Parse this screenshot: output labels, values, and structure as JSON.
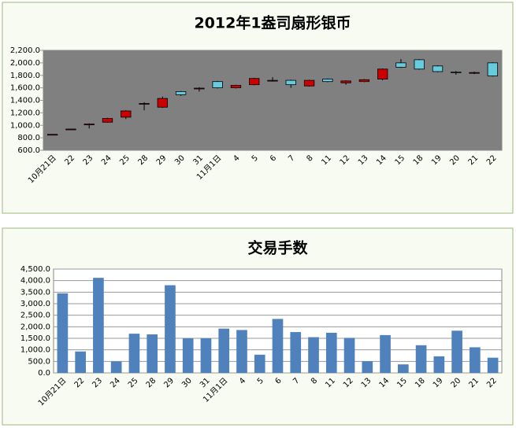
{
  "chart_data": [
    {
      "type": "candlestick",
      "title": "2012年1盎司扇形银币",
      "categories": [
        "10月21日",
        "22",
        "23",
        "24",
        "25",
        "28",
        "29",
        "30",
        "31",
        "11月1日",
        "4",
        "5",
        "6",
        "7",
        "8",
        "11",
        "12",
        "13",
        "14",
        "15",
        "18",
        "19",
        "20",
        "21",
        "22"
      ],
      "open": [
        850,
        935,
        1015,
        1050,
        1130,
        1340,
        1290,
        1540,
        1590,
        1700,
        1600,
        1650,
        1715,
        1720,
        1630,
        1740,
        1680,
        1700,
        1740,
        2000,
        2050,
        1950,
        1855,
        1840,
        2000
      ],
      "high": [
        860,
        945,
        1030,
        1120,
        1240,
        1370,
        1460,
        1550,
        1610,
        1710,
        1650,
        1760,
        1770,
        1730,
        1730,
        1750,
        1720,
        1740,
        1910,
        2060,
        2060,
        1960,
        1870,
        1860,
        2010
      ],
      "low": [
        845,
        925,
        950,
        1040,
        1100,
        1240,
        1280,
        1470,
        1540,
        1590,
        1590,
        1640,
        1700,
        1600,
        1620,
        1690,
        1650,
        1690,
        1720,
        1920,
        1890,
        1850,
        1810,
        1820,
        1780
      ],
      "close": [
        855,
        940,
        1020,
        1110,
        1230,
        1350,
        1430,
        1490,
        1595,
        1600,
        1640,
        1750,
        1720,
        1650,
        1720,
        1700,
        1710,
        1730,
        1900,
        1930,
        1900,
        1860,
        1850,
        1845,
        1790
      ],
      "up_color": "#cc0000",
      "down_color": "#66ccdd",
      "ylim": [
        600,
        2200
      ],
      "yticks": [
        {
          "value": 600,
          "label": "600.0"
        },
        {
          "value": 800,
          "label": "800.0"
        },
        {
          "value": 1000,
          "label": "1,000.0"
        },
        {
          "value": 1200,
          "label": "1,200.0"
        },
        {
          "value": 1400,
          "label": "1,400.0"
        },
        {
          "value": 1600,
          "label": "1,600.0"
        },
        {
          "value": 1800,
          "label": "1,800.0"
        },
        {
          "value": 2000,
          "label": "2,000.0"
        },
        {
          "value": 2200,
          "label": "2,200.0"
        }
      ],
      "grid": false
    },
    {
      "type": "bar",
      "title": "交易手数",
      "categories": [
        "10月21日",
        "22",
        "23",
        "24",
        "25",
        "28",
        "29",
        "30",
        "31",
        "11月1日",
        "4",
        "5",
        "6",
        "7",
        "8",
        "11",
        "12",
        "13",
        "14",
        "15",
        "18",
        "19",
        "20",
        "21",
        "22"
      ],
      "values": [
        3450,
        930,
        4120,
        500,
        1700,
        1670,
        3800,
        1500,
        1500,
        1920,
        1860,
        790,
        2340,
        1770,
        1550,
        1740,
        1520,
        510,
        1640,
        370,
        1200,
        720,
        1830,
        1110,
        660
      ],
      "color": "#4f81bd",
      "ylim": [
        0,
        4500
      ],
      "yticks": [
        {
          "value": 0,
          "label": "0.0"
        },
        {
          "value": 500,
          "label": "500.0"
        },
        {
          "value": 1000,
          "label": "1,000.0"
        },
        {
          "value": 1500,
          "label": "1,500.0"
        },
        {
          "value": 2000,
          "label": "2,000.0"
        },
        {
          "value": 2500,
          "label": "2,500.0"
        },
        {
          "value": 3000,
          "label": "3,000.0"
        },
        {
          "value": 3500,
          "label": "3,500.0"
        },
        {
          "value": 4000,
          "label": "4,000.0"
        },
        {
          "value": 4500,
          "label": "4,500.0"
        }
      ],
      "grid": true
    }
  ]
}
